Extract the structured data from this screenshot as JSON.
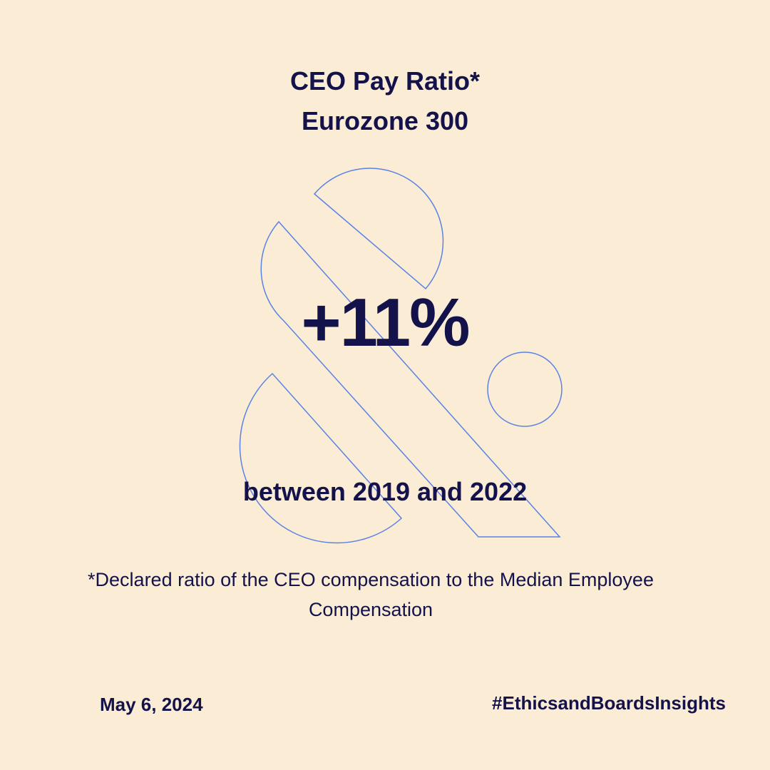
{
  "header": {
    "title_line1": "CEO Pay Ratio*",
    "title_line2": "Eurozone 300"
  },
  "main": {
    "stat": "+11%",
    "period": "between 2019 and 2022"
  },
  "footnote": "*Declared ratio of the CEO compensation to the Median Employee Compensation",
  "footer": {
    "date": "May 6, 2024",
    "hashtag": "#EthicsandBoardsInsights"
  },
  "colors": {
    "background": "#fbecd5",
    "text": "#14124a",
    "outline_accent": "#5b82e6"
  },
  "decoration": {
    "icon": "ampersand-outline-icon"
  }
}
